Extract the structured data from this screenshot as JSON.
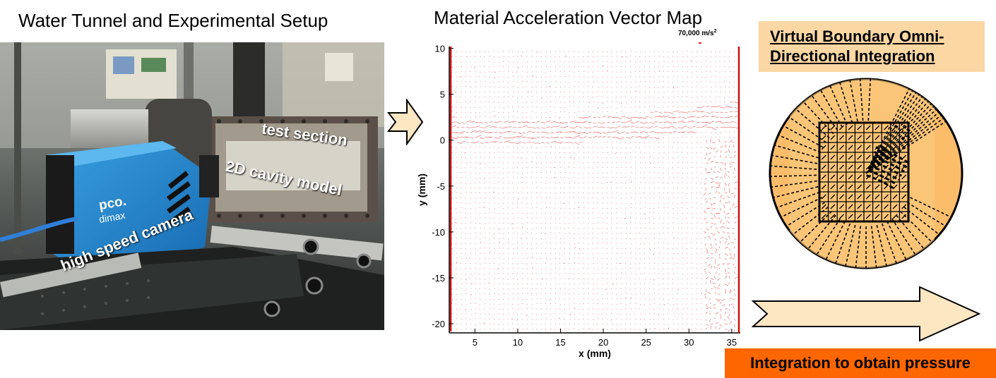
{
  "photo_panel": {
    "title": "Water Tunnel and Experimental Setup",
    "labels": {
      "test_section": "test section",
      "cavity_model": "2D cavity model",
      "camera": "high speed camera",
      "camera_brand": "pco.",
      "camera_model": "dimax"
    }
  },
  "vector_panel": {
    "title": "Material Acceleration Vector Map",
    "scale_label": "70,000 m/s",
    "scale_exponent": "2",
    "vector_color": "#e02020"
  },
  "chart_data": {
    "type": "scatter",
    "title": "Material Acceleration Vector Map",
    "xlabel": "x (mm)",
    "ylabel": "y (mm)",
    "xlim": [
      2,
      36
    ],
    "ylim": [
      -21,
      10.2
    ],
    "x_ticks": [
      5,
      10,
      15,
      20,
      25,
      30,
      35
    ],
    "y_ticks": [
      10,
      5,
      0,
      -5,
      -10,
      -15,
      -20
    ],
    "grid": false,
    "shear_layer_y_mm": [
      [
        2,
        1.2
      ],
      [
        5,
        0.8
      ],
      [
        8,
        0.9
      ],
      [
        11,
        0.7
      ],
      [
        14,
        1.0
      ],
      [
        17,
        1.1
      ],
      [
        20,
        1.6
      ],
      [
        23,
        1.5
      ],
      [
        26,
        1.7
      ],
      [
        29,
        2.0
      ],
      [
        32,
        2.4
      ],
      [
        35,
        2.8
      ]
    ]
  },
  "integration_panel": {
    "title_line1": "Virtual Boundary  Omni-",
    "title_line2": "Directional Integration",
    "box_color": "#fbd7a4",
    "circle_color": "#fbbd6a"
  },
  "pressure_box": {
    "label": "Integration to obtain pressure",
    "color": "#fe6600"
  },
  "arrows": {
    "fill_color": "#fde6c2"
  }
}
